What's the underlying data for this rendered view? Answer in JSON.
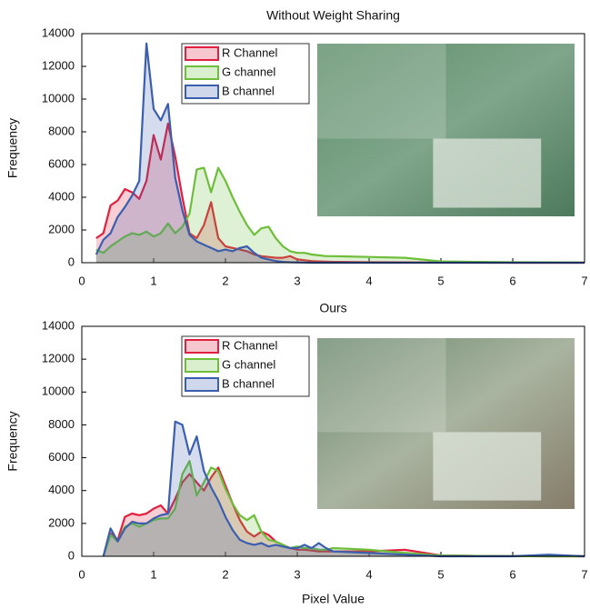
{
  "chart_data": [
    {
      "type": "area",
      "title": "Without Weight Sharing",
      "ylabel": "Frequency",
      "x": [
        0.2,
        0.3,
        0.4,
        0.5,
        0.6,
        0.7,
        0.8,
        0.9,
        1.0,
        1.1,
        1.2,
        1.3,
        1.4,
        1.5,
        1.6,
        1.7,
        1.8,
        1.9,
        2.0,
        2.1,
        2.2,
        2.3,
        2.4,
        2.5,
        2.6,
        2.7,
        2.8,
        2.9,
        3.0,
        3.1,
        3.2,
        3.3,
        3.4,
        3.5,
        4,
        4.5,
        5,
        5.5,
        6,
        6.5,
        7
      ],
      "series": [
        {
          "name": "R Channel",
          "color": "#e0203f",
          "values": [
            1500,
            1800,
            3500,
            3800,
            4500,
            4300,
            3900,
            5000,
            7800,
            6300,
            8500,
            6500,
            4000,
            1800,
            1500,
            2300,
            3700,
            1500,
            1000,
            900,
            800,
            700,
            500,
            400,
            350,
            300,
            300,
            400,
            200,
            150,
            100,
            80,
            60,
            50,
            30,
            20,
            10,
            5,
            0,
            0,
            0
          ]
        },
        {
          "name": "G channel",
          "color": "#6dbf3a",
          "values": [
            800,
            600,
            1000,
            1300,
            1600,
            1800,
            1700,
            1900,
            1600,
            1800,
            2400,
            1800,
            2200,
            3000,
            5700,
            5800,
            4300,
            5800,
            5000,
            4000,
            3100,
            2300,
            1700,
            2100,
            2200,
            1500,
            1000,
            700,
            600,
            600,
            500,
            450,
            400,
            400,
            350,
            300,
            80,
            50,
            30,
            20,
            10
          ]
        },
        {
          "name": "B channel",
          "color": "#3b5fae",
          "values": [
            500,
            1400,
            1800,
            2800,
            3400,
            4100,
            5000,
            13400,
            9400,
            8700,
            9700,
            5200,
            3200,
            1700,
            1300,
            1100,
            900,
            700,
            800,
            700,
            900,
            1000,
            600,
            300,
            200,
            100,
            50,
            30,
            20,
            10,
            0,
            0,
            0,
            0,
            0,
            0,
            0,
            0,
            0,
            0,
            0
          ]
        }
      ],
      "xlim": [
        0,
        7
      ],
      "ylim": [
        0,
        14000
      ],
      "xticks": [
        0,
        1,
        2,
        3,
        4,
        5,
        6,
        7
      ],
      "yticks": [
        0,
        2000,
        4000,
        6000,
        8000,
        10000,
        12000,
        14000
      ],
      "legend": "upper-left"
    },
    {
      "type": "area",
      "title": "Ours",
      "ylabel": "Frequency",
      "xlabel": "Pixel Value",
      "x": [
        0.3,
        0.4,
        0.5,
        0.6,
        0.7,
        0.8,
        0.9,
        1.0,
        1.1,
        1.2,
        1.3,
        1.4,
        1.5,
        1.6,
        1.7,
        1.8,
        1.9,
        2.0,
        2.1,
        2.2,
        2.3,
        2.4,
        2.5,
        2.6,
        2.7,
        2.8,
        2.9,
        3.0,
        3.1,
        3.2,
        3.3,
        3.4,
        3.5,
        4,
        4.5,
        5,
        5.5,
        6,
        6.5,
        7
      ],
      "series": [
        {
          "name": "R Channel",
          "color": "#e0203f",
          "values": [
            0,
            1400,
            1000,
            2400,
            2600,
            2500,
            2600,
            2900,
            3100,
            2600,
            3500,
            4500,
            5000,
            4500,
            4000,
            4800,
            5400,
            4300,
            3200,
            2200,
            1500,
            1200,
            1500,
            1300,
            900,
            700,
            500,
            400,
            400,
            350,
            300,
            300,
            300,
            300,
            400,
            50,
            20,
            10,
            0,
            0
          ]
        },
        {
          "name": "G channel",
          "color": "#6dbf3a",
          "values": [
            0,
            1300,
            900,
            1800,
            2000,
            1800,
            2000,
            2200,
            2300,
            2300,
            2900,
            5000,
            5800,
            3700,
            4500,
            5400,
            5200,
            4100,
            3200,
            2500,
            2200,
            2500,
            1500,
            1000,
            900,
            700,
            500,
            600,
            500,
            500,
            400,
            400,
            500,
            400,
            200,
            50,
            20,
            10,
            0,
            0
          ]
        },
        {
          "name": "B channel",
          "color": "#3b5fae",
          "values": [
            0,
            1700,
            900,
            1700,
            2100,
            2000,
            2000,
            2300,
            2500,
            2600,
            8200,
            8000,
            6200,
            7300,
            5200,
            4200,
            3400,
            2400,
            1600,
            1000,
            800,
            700,
            800,
            600,
            700,
            600,
            500,
            500,
            700,
            500,
            800,
            500,
            300,
            200,
            100,
            0,
            0,
            0,
            100,
            0
          ]
        }
      ],
      "xlim": [
        0,
        7
      ],
      "ylim": [
        0,
        14000
      ],
      "xticks": [
        0,
        1,
        2,
        3,
        4,
        5,
        6,
        7
      ],
      "yticks": [
        0,
        2000,
        4000,
        6000,
        8000,
        10000,
        12000,
        14000
      ],
      "legend": "upper-left"
    }
  ]
}
